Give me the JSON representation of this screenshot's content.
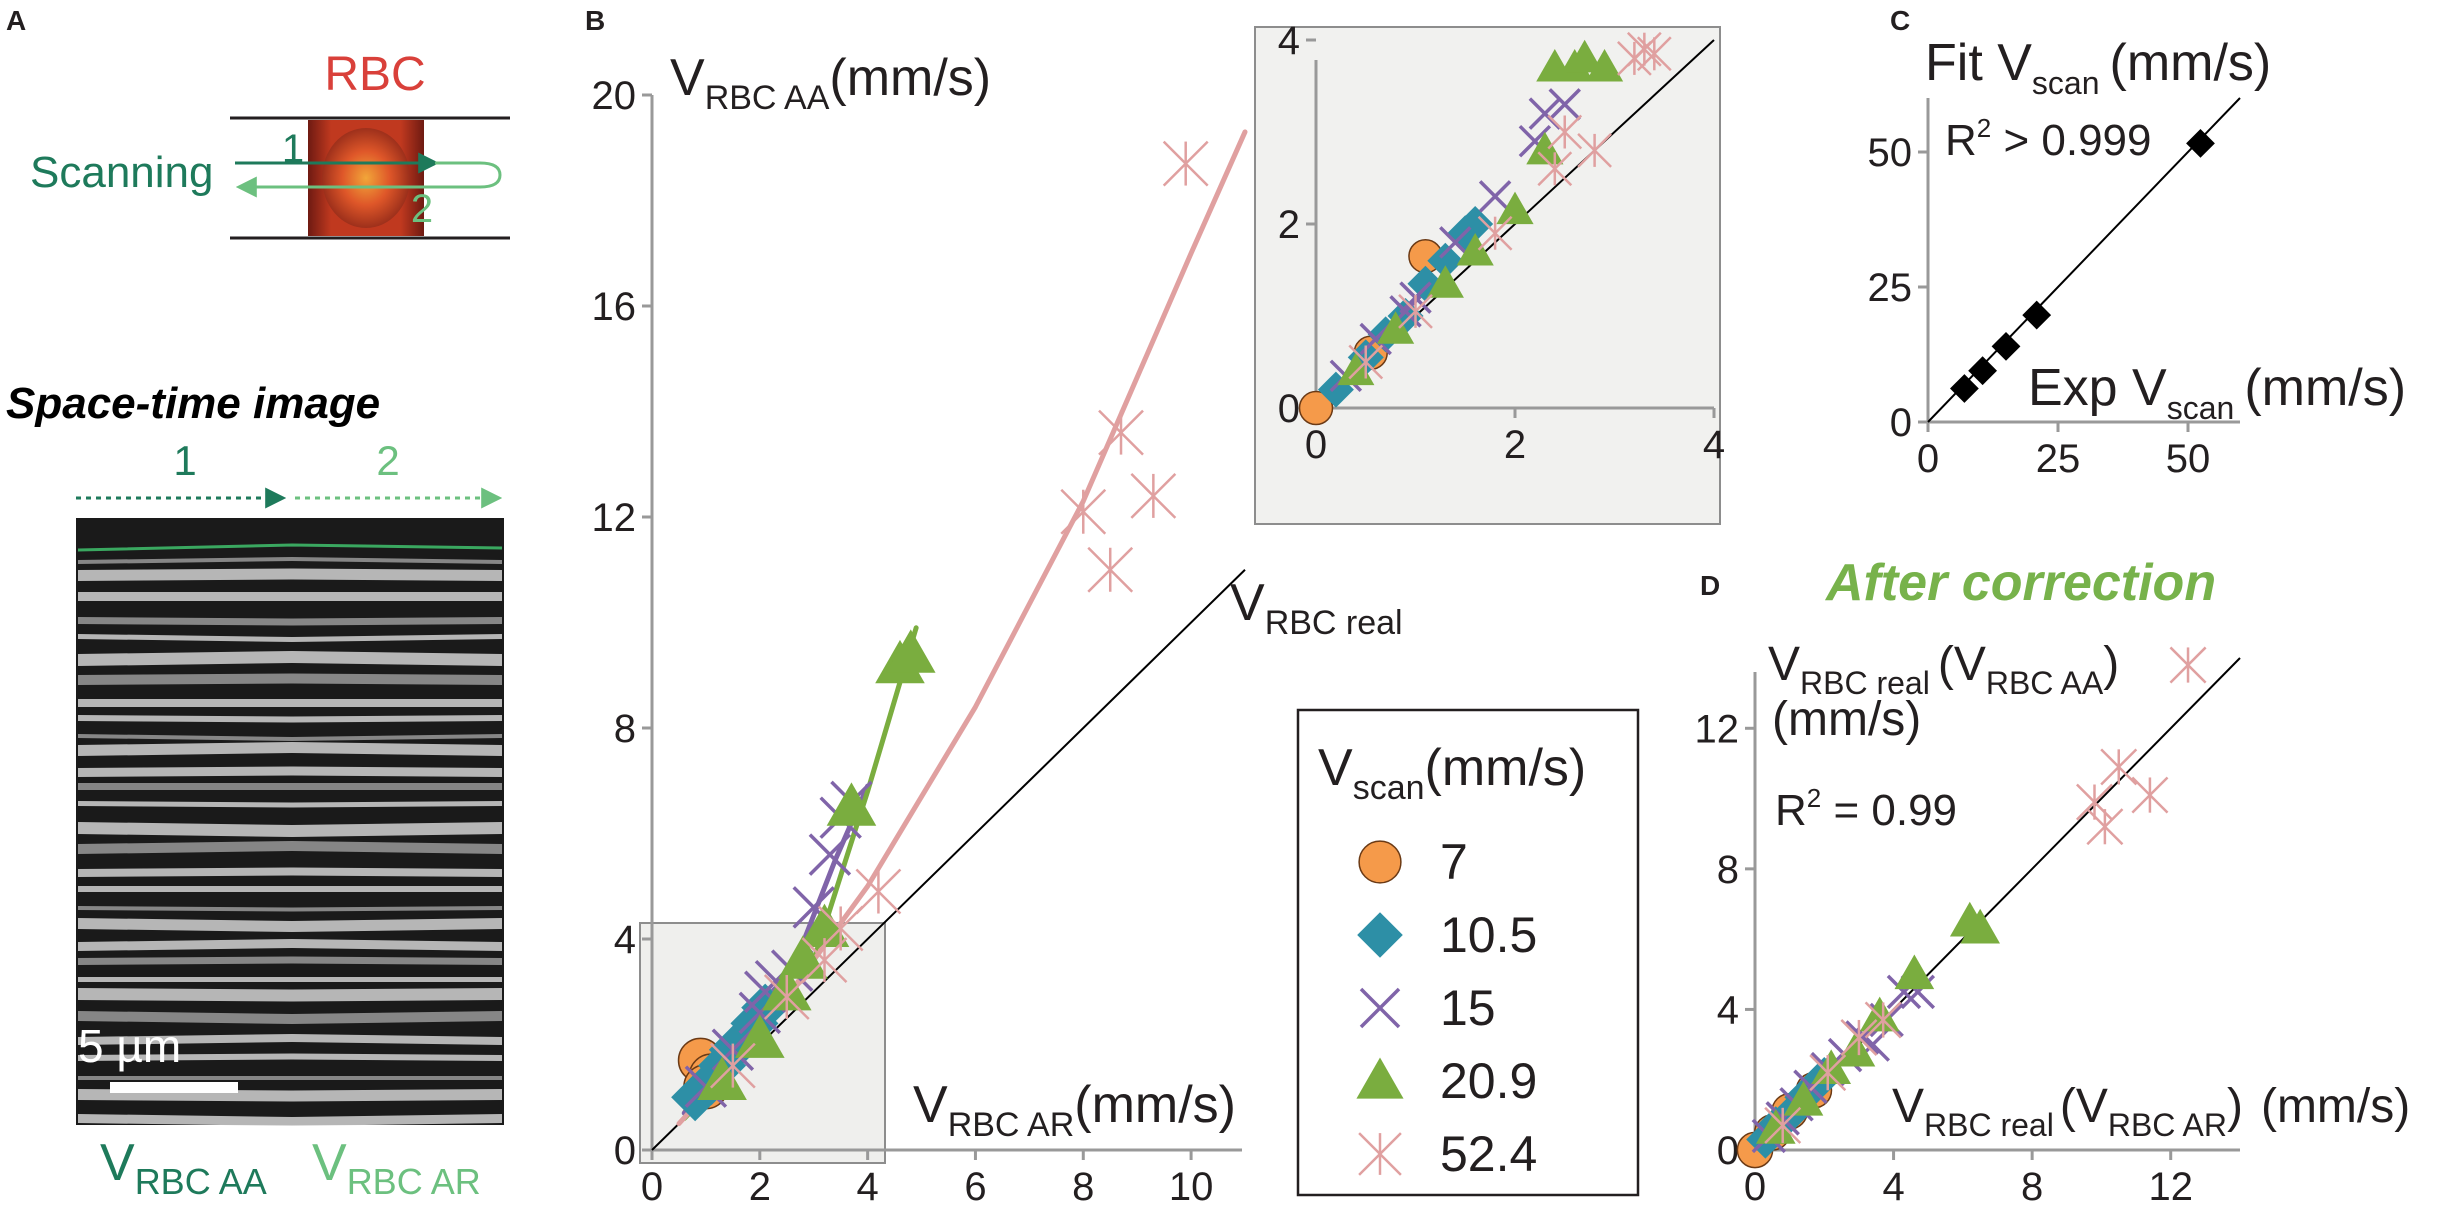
{
  "panel_letters": {
    "a": "A",
    "b": "B",
    "c": "C",
    "d": "D"
  },
  "panel_a": {
    "rbc_label": "RBC",
    "scanning_label": "Scanning",
    "pass1": "1",
    "pass2": "2",
    "spacetime_title": "Space-time image",
    "arrow1": "1",
    "arrow2": "2",
    "scalebar": "5 µm",
    "v_letter": "V",
    "aa_sub": "RBC AA",
    "ar_sub": "RBC AR"
  },
  "panel_b": {
    "y_main": "V",
    "y_sub": "RBC AA",
    "y_unit": "(mm/s)",
    "x_main": "V",
    "x_sub": "RBC AR",
    "x_unit": "(mm/s)",
    "ideal_main": "V",
    "ideal_sub": "RBC real"
  },
  "panel_c": {
    "y_main": "Fit V",
    "y_sub": "scan",
    "y_unit": "(mm/s)",
    "x_main": "Exp V",
    "x_sub": "scan",
    "x_unit": "(mm/s)",
    "r2_prefix": "R",
    "r2_sup": "2",
    "r2_value": " > 0.999"
  },
  "panel_d": {
    "title": "After correction",
    "y_main": "V",
    "y_sub": "RBC real",
    "y_paren_main": "(V",
    "y_paren_sub": "RBC AA",
    "y_paren_close": ")",
    "y_unit": "(mm/s)",
    "x_main": "V",
    "x_sub": "RBC real",
    "x_paren_main": "(V",
    "x_paren_sub": "RBC AR",
    "x_paren_close": ")",
    "x_unit": "(mm/s)",
    "r2_prefix": "R",
    "r2_sup": "2",
    "r2_value": " = 0.99"
  },
  "legend": {
    "title_main": "V",
    "title_sub": "scan",
    "title_unit": "(mm/s)",
    "items": [
      {
        "label": "7",
        "marker": "circle",
        "color": "#f59a4a"
      },
      {
        "label": "10.5",
        "marker": "diamond",
        "color": "#2d8fa6"
      },
      {
        "label": "15",
        "marker": "x",
        "color": "#8064a9"
      },
      {
        "label": "20.9",
        "marker": "triangle",
        "color": "#7aad3f"
      },
      {
        "label": "52.4",
        "marker": "asterisk",
        "color": "#e0a0a0"
      }
    ]
  },
  "chart_data": [
    {
      "id": "B",
      "type": "scatter",
      "xlabel": "VRBC AR (mm/s)",
      "ylabel": "VRBC AA (mm/s)",
      "xlim": [
        0,
        11
      ],
      "ylim": [
        0,
        20
      ],
      "xticks": [
        0,
        2,
        4,
        6,
        8,
        10
      ],
      "yticks": [
        0,
        4,
        8,
        12,
        16,
        20
      ],
      "identity_label": "VRBC real",
      "series": [
        {
          "name": "7",
          "points": [
            [
              0.9,
              1.7
            ],
            [
              1.1,
              1.4
            ],
            [
              1.0,
              1.2
            ]
          ],
          "fit": [
            [
              0.6,
              0.7
            ],
            [
              1.2,
              1.8
            ]
          ]
        },
        {
          "name": "10.5",
          "points": [
            [
              0.8,
              1.0
            ],
            [
              1.1,
              1.3
            ],
            [
              1.3,
              1.6
            ],
            [
              1.5,
              1.9
            ],
            [
              1.7,
              2.1
            ],
            [
              1.9,
              2.4
            ],
            [
              2.1,
              2.7
            ]
          ],
          "fit": [
            [
              0.6,
              0.7
            ],
            [
              2.2,
              2.9
            ]
          ]
        },
        {
          "name": "15",
          "points": [
            [
              1.0,
              1.2
            ],
            [
              1.5,
              1.9
            ],
            [
              2.0,
              2.6
            ],
            [
              2.3,
              3.2
            ],
            [
              2.6,
              3.4
            ],
            [
              3.0,
              4.6
            ],
            [
              3.3,
              5.6
            ],
            [
              3.5,
              6.3
            ],
            [
              3.7,
              6.6
            ],
            [
              2.1,
              3.0
            ]
          ],
          "fit": [
            [
              0.6,
              0.7
            ],
            [
              1.6,
              2.0
            ],
            [
              2.6,
              3.4
            ],
            [
              3.4,
              5.5
            ],
            [
              4.0,
              6.9
            ]
          ]
        },
        {
          "name": "20.9",
          "points": [
            [
              1.3,
              1.3
            ],
            [
              2.0,
              2.1
            ],
            [
              2.5,
              3.0
            ],
            [
              2.8,
              3.6
            ],
            [
              3.2,
              4.2
            ],
            [
              3.7,
              6.5
            ],
            [
              4.6,
              9.2
            ],
            [
              4.8,
              9.4
            ]
          ],
          "fit": [
            [
              0.6,
              0.6
            ],
            [
              2.0,
              2.1
            ],
            [
              3.0,
              3.6
            ],
            [
              4.0,
              6.8
            ],
            [
              4.9,
              9.9
            ]
          ]
        },
        {
          "name": "52.4",
          "points": [
            [
              1.5,
              1.6
            ],
            [
              2.5,
              2.9
            ],
            [
              3.2,
              3.6
            ],
            [
              3.5,
              4.2
            ],
            [
              4.2,
              4.9
            ],
            [
              8.0,
              12.1
            ],
            [
              8.5,
              11.0
            ],
            [
              8.7,
              13.6
            ],
            [
              9.3,
              12.4
            ],
            [
              9.9,
              18.7
            ]
          ],
          "fit": [
            [
              0.5,
              0.5
            ],
            [
              2.0,
              2.2
            ],
            [
              4.0,
              5.0
            ],
            [
              6.0,
              8.4
            ],
            [
              8.0,
              12.3
            ],
            [
              10.0,
              17.0
            ],
            [
              11.0,
              19.3
            ]
          ]
        }
      ],
      "inset": {
        "xlim": [
          0,
          4
        ],
        "ylim": [
          0,
          4
        ],
        "xticks": [
          0,
          2,
          4
        ],
        "yticks": [
          0,
          2,
          4
        ],
        "points": [
          {
            "series": "7",
            "xy": [
              [
                0.0,
                0.0
              ],
              [
                0.55,
                0.6
              ],
              [
                1.1,
                1.65
              ]
            ]
          },
          {
            "series": "10.5",
            "xy": [
              [
                0.2,
                0.2
              ],
              [
                0.5,
                0.55
              ],
              [
                0.9,
                1.0
              ],
              [
                1.1,
                1.35
              ],
              [
                1.3,
                1.6
              ],
              [
                1.5,
                1.9
              ],
              [
                1.6,
                2.0
              ],
              [
                0.7,
                0.8
              ]
            ]
          },
          {
            "series": "15",
            "xy": [
              [
                0.3,
                0.35
              ],
              [
                0.6,
                0.75
              ],
              [
                1.0,
                1.2
              ],
              [
                1.4,
                1.8
              ],
              [
                1.8,
                2.3
              ],
              [
                2.2,
                2.9
              ],
              [
                2.3,
                3.2
              ],
              [
                2.5,
                3.3
              ],
              [
                0.9,
                1.05
              ]
            ]
          },
          {
            "series": "20.9",
            "xy": [
              [
                0.4,
                0.4
              ],
              [
                0.8,
                0.85
              ],
              [
                1.3,
                1.35
              ],
              [
                1.6,
                1.7
              ],
              [
                2.0,
                2.15
              ],
              [
                2.3,
                2.8
              ],
              [
                2.4,
                3.7
              ],
              [
                2.6,
                3.7
              ],
              [
                2.7,
                3.8
              ],
              [
                2.9,
                3.7
              ]
            ]
          },
          {
            "series": "52.4",
            "xy": [
              [
                0.5,
                0.5
              ],
              [
                1.0,
                1.05
              ],
              [
                1.8,
                1.9
              ],
              [
                2.4,
                2.6
              ],
              [
                2.5,
                3.0
              ],
              [
                2.8,
                2.8
              ],
              [
                3.2,
                3.8
              ],
              [
                3.3,
                3.9
              ],
              [
                3.4,
                3.85
              ]
            ]
          }
        ]
      }
    },
    {
      "id": "C",
      "type": "scatter",
      "xlabel": "Exp Vscan (mm/s)",
      "ylabel": "Fit Vscan (mm/s)",
      "xlim": [
        0,
        60
      ],
      "ylim": [
        0,
        60
      ],
      "xticks": [
        0,
        25,
        50
      ],
      "yticks": [
        0,
        25,
        50
      ],
      "r2": "> 0.999",
      "points": [
        [
          7,
          6.2
        ],
        [
          10.5,
          9.5
        ],
        [
          15,
          14.0
        ],
        [
          20.9,
          19.8
        ],
        [
          52.4,
          51.6
        ]
      ]
    },
    {
      "id": "D",
      "type": "scatter",
      "xlabel": "VRBC real (VRBC AR) (mm/s)",
      "ylabel": "VRBC real (VRBC AA) (mm/s)",
      "xlim": [
        0,
        14
      ],
      "ylim": [
        0,
        14
      ],
      "xticks": [
        0,
        4,
        8,
        12
      ],
      "yticks": [
        0,
        4,
        8,
        12
      ],
      "r2": "= 0.99",
      "series": [
        {
          "name": "7",
          "points": [
            [
              0.0,
              0.0
            ],
            [
              0.5,
              0.5
            ],
            [
              1.0,
              1.1
            ],
            [
              1.7,
              1.7
            ]
          ]
        },
        {
          "name": "10.5",
          "points": [
            [
              0.3,
              0.3
            ],
            [
              0.6,
              0.7
            ],
            [
              1.0,
              1.0
            ],
            [
              1.4,
              1.5
            ],
            [
              1.8,
              1.9
            ],
            [
              2.0,
              2.1
            ]
          ]
        },
        {
          "name": "15",
          "points": [
            [
              0.4,
              0.4
            ],
            [
              0.8,
              0.9
            ],
            [
              1.2,
              1.3
            ],
            [
              1.6,
              1.8
            ],
            [
              2.1,
              2.3
            ],
            [
              2.6,
              2.7
            ],
            [
              3.1,
              3.2
            ],
            [
              3.8,
              3.7
            ],
            [
              4.3,
              4.5
            ],
            [
              4.7,
              4.5
            ],
            [
              3.4,
              3.0
            ]
          ]
        },
        {
          "name": "20.9",
          "points": [
            [
              0.6,
              0.6
            ],
            [
              1.4,
              1.4
            ],
            [
              2.2,
              2.3
            ],
            [
              2.9,
              2.8
            ],
            [
              3.6,
              3.8
            ],
            [
              4.6,
              5.0
            ],
            [
              6.2,
              6.5
            ],
            [
              6.5,
              6.3
            ]
          ]
        },
        {
          "name": "52.4",
          "points": [
            [
              0.8,
              0.7
            ],
            [
              2.1,
              2.2
            ],
            [
              3.0,
              3.2
            ],
            [
              3.7,
              3.7
            ],
            [
              9.8,
              9.9
            ],
            [
              10.1,
              9.2
            ],
            [
              10.5,
              10.9
            ],
            [
              11.4,
              10.1
            ],
            [
              12.5,
              13.8
            ]
          ]
        }
      ]
    }
  ]
}
